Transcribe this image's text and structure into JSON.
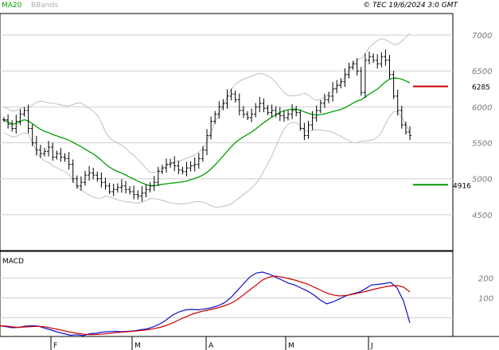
{
  "header": {
    "legend_ma": "MA20",
    "legend_bb": "BBands",
    "copyright": "© TEC 19/6/2024 3:0 GMT"
  },
  "colors": {
    "ma": "#00a000",
    "bands": "#c0c0c0",
    "price": "#000000",
    "resistance": "#cc0000",
    "support": "#009900",
    "macd": "#1010cc",
    "signal": "#cc0000",
    "grid": "#d0d0d0"
  },
  "chart_data": [
    {
      "type": "ohlc",
      "ylim": [
        4000,
        7300
      ],
      "yticks": [
        4500,
        5000,
        5500,
        6000,
        6500,
        7000
      ],
      "x_labels": [
        "F",
        "M",
        "A",
        "M",
        "J"
      ],
      "resistance": {
        "value": 6285,
        "label": "6285"
      },
      "support": {
        "value": 4916,
        "label": "4916"
      },
      "closes": [
        5820,
        5760,
        5700,
        5800,
        5900,
        5950,
        5700,
        5500,
        5400,
        5350,
        5380,
        5440,
        5300,
        5350,
        5300,
        5280,
        5200,
        5000,
        4900,
        4950,
        5050,
        5080,
        5050,
        5000,
        4950,
        4900,
        4820,
        4850,
        4880,
        4900,
        4850,
        4820,
        4780,
        4760,
        4800,
        4850,
        4900,
        4950,
        5100,
        5150,
        5200,
        5220,
        5180,
        5120,
        5100,
        5150,
        5180,
        5200,
        5280,
        5400,
        5600,
        5800,
        5900,
        6000,
        6050,
        6150,
        6180,
        6100,
        5950,
        5900,
        5850,
        5900,
        6000,
        6050,
        5980,
        5920,
        5950,
        5900,
        5880,
        5850,
        5900,
        5950,
        5920,
        5700,
        5600,
        5750,
        5850,
        5950,
        6050,
        6100,
        6150,
        6250,
        6300,
        6350,
        6450,
        6550,
        6600,
        6500,
        6200,
        6650,
        6700,
        6650,
        6600,
        6700,
        6650,
        6450,
        6150,
        5950,
        5750,
        5650,
        5600
      ]
    },
    {
      "type": "line",
      "title": "MACD",
      "ylim": [
        -90,
        330
      ],
      "yticks": [
        100,
        200
      ],
      "series": [
        {
          "name": "MACD",
          "values": [
            -40,
            -45,
            -50,
            -48,
            -42,
            -40,
            -42,
            -52,
            -62,
            -72,
            -80,
            -88,
            -85,
            -90,
            -80,
            -78,
            -72,
            -70,
            -68,
            -70,
            -68,
            -65,
            -60,
            -55,
            -45,
            -30,
            -10,
            15,
            30,
            40,
            42,
            40,
            45,
            50,
            60,
            75,
            100,
            135,
            170,
            205,
            225,
            230,
            220,
            205,
            190,
            175,
            165,
            150,
            135,
            115,
            90,
            70,
            80,
            95,
            110,
            120,
            128,
            145,
            165,
            168,
            172,
            178,
            150,
            85,
            -25
          ]
        },
        {
          "name": "Signal",
          "values": [
            -40,
            -42,
            -46,
            -48,
            -46,
            -44,
            -43,
            -45,
            -52,
            -58,
            -65,
            -72,
            -78,
            -82,
            -85,
            -84,
            -82,
            -79,
            -75,
            -72,
            -70,
            -67,
            -64,
            -60,
            -55,
            -48,
            -38,
            -25,
            -10,
            5,
            18,
            28,
            36,
            42,
            50,
            60,
            72,
            90,
            115,
            140,
            165,
            190,
            205,
            210,
            205,
            198,
            190,
            180,
            170,
            155,
            140,
            125,
            115,
            110,
            112,
            118,
            125,
            132,
            140,
            148,
            155,
            160,
            162,
            155,
            130
          ]
        }
      ]
    }
  ]
}
